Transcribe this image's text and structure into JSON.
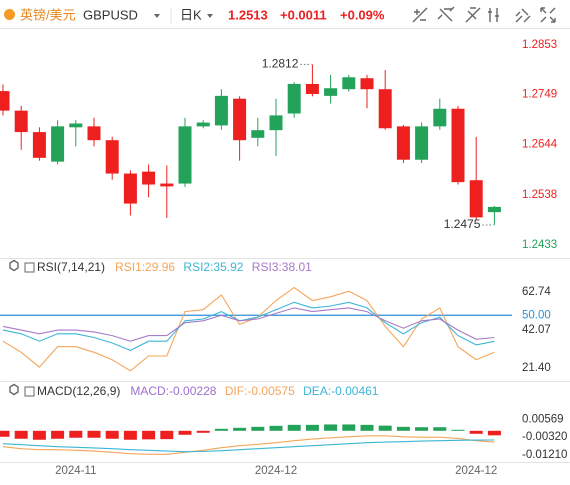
{
  "header": {
    "pair": "英镑/美元",
    "symbol": "GBPUSD",
    "period": "日K",
    "price": "1.2513",
    "change": "+0.0011",
    "change_pct": "+0.09%"
  },
  "chart_data": [
    {
      "type": "candlestick",
      "categories": [
        null,
        null,
        null,
        null,
        "2024-11",
        null,
        null,
        null,
        null,
        null,
        null,
        null,
        null,
        null,
        null,
        "2024-12",
        null,
        null,
        null,
        null,
        null,
        null,
        null,
        null,
        null,
        null,
        "2024-12",
        null
      ],
      "open": [
        1.2756,
        1.2715,
        1.267,
        1.2608,
        1.268,
        1.2682,
        1.2653,
        1.2583,
        1.2587,
        1.2562,
        1.2562,
        1.2682,
        1.2684,
        1.274,
        1.2658,
        1.2674,
        1.2709,
        1.2771,
        1.2746,
        1.276,
        1.2783,
        1.276,
        1.2682,
        1.2612,
        1.2682,
        1.2719,
        1.2569,
        1.2502
      ],
      "high": [
        1.277,
        1.2725,
        1.268,
        1.2695,
        1.2695,
        1.27,
        1.266,
        1.259,
        1.2602,
        1.26,
        1.27,
        1.2695,
        1.276,
        1.2745,
        1.27,
        1.274,
        1.2775,
        1.2812,
        1.279,
        1.279,
        1.279,
        1.28,
        1.2685,
        1.269,
        1.274,
        1.2725,
        1.266,
        1.2515
      ],
      "low": [
        1.2705,
        1.2633,
        1.261,
        1.2602,
        1.264,
        1.264,
        1.257,
        1.2495,
        1.2533,
        1.249,
        1.2555,
        1.2678,
        1.2675,
        1.261,
        1.264,
        1.262,
        1.27,
        1.2745,
        1.273,
        1.2755,
        1.272,
        1.2675,
        1.2605,
        1.2605,
        1.2675,
        1.256,
        1.2485,
        1.2475
      ],
      "close": [
        1.2715,
        1.267,
        1.2616,
        1.2682,
        1.2688,
        1.2653,
        1.2583,
        1.252,
        1.256,
        1.2556,
        1.2682,
        1.269,
        1.2746,
        1.2653,
        1.2674,
        1.2705,
        1.2771,
        1.275,
        1.2762,
        1.2785,
        1.276,
        1.2678,
        1.2612,
        1.2682,
        1.2719,
        1.2565,
        1.2491,
        1.2513
      ],
      "up_color": "#23a25a",
      "down_color": "#ee1f1f",
      "high_label": 1.2812,
      "low_label": 1.2475,
      "ylim": [
        1.241,
        1.288
      ],
      "yticks": [
        1.2853,
        1.2749,
        1.2644,
        1.2538,
        1.2433
      ]
    },
    {
      "type": "line",
      "label": "RSI(7,14,21)",
      "series": [
        {
          "name": "RSI1:29.96",
          "color": "#f5a55a",
          "values": [
            36,
            30,
            22,
            33,
            33,
            30,
            26,
            20,
            28,
            28,
            52,
            53,
            61,
            45,
            49,
            58,
            65,
            58,
            60,
            63,
            58,
            44,
            33,
            48,
            54,
            33,
            26,
            29.96
          ]
        },
        {
          "name": "RSI2:35.92",
          "color": "#3cb6d6",
          "values": [
            42,
            40,
            36,
            40,
            40,
            38,
            35,
            31,
            36,
            36,
            47,
            48,
            52,
            47,
            49,
            53,
            57,
            54,
            55,
            57,
            54,
            46,
            40,
            46,
            49,
            39,
            34,
            35.92
          ]
        },
        {
          "name": "RSI3:38.01",
          "color": "#a77bc9",
          "values": [
            44,
            42,
            40,
            42,
            42,
            41,
            39,
            36,
            39,
            39,
            46,
            47,
            50,
            47,
            48,
            51,
            54,
            52,
            53,
            54,
            52,
            47,
            43,
            47,
            48,
            42,
            37,
            38.01
          ]
        }
      ],
      "ylim": [
        15,
        68
      ],
      "yticks": [
        62.74,
        {
          "value": 50,
          "label": "50.00",
          "color": "#2f8fd8"
        },
        42.07,
        {
          "value": 21.4,
          "label": "21.40"
        }
      ]
    },
    {
      "type": "bar",
      "label": "MACD(12,26,9)",
      "name": "MACD:-0.00228",
      "name_color": "#9d6fcf",
      "up_color": "#23a25a",
      "down_color": "#ee1f1f",
      "values": [
        -0.003,
        -0.004,
        -0.0045,
        -0.004,
        -0.0035,
        -0.0035,
        -0.004,
        -0.0045,
        -0.0043,
        -0.0042,
        -0.002,
        -0.001,
        0.001,
        0.0015,
        0.002,
        0.0025,
        0.003,
        0.003,
        0.0032,
        0.0032,
        0.003,
        0.0026,
        0.002,
        0.0018,
        0.0018,
        0.0005,
        -0.0015,
        -0.00228
      ],
      "series": [
        {
          "name": "DIF:-0.00575",
          "color": "#f5a55a",
          "values": [
            -0.008,
            -0.009,
            -0.0095,
            -0.0095,
            -0.0098,
            -0.0102,
            -0.0108,
            -0.0115,
            -0.0118,
            -0.0118,
            -0.0108,
            -0.0098,
            -0.0085,
            -0.0075,
            -0.0068,
            -0.006,
            -0.005,
            -0.0042,
            -0.0035,
            -0.003,
            -0.0025,
            -0.0025,
            -0.003,
            -0.0032,
            -0.0032,
            -0.0038,
            -0.005,
            -0.00575
          ]
        },
        {
          "name": "DEA:-0.00461",
          "color": "#3cb6d6",
          "values": [
            -0.0065,
            -0.007,
            -0.0075,
            -0.008,
            -0.0083,
            -0.0086,
            -0.009,
            -0.0095,
            -0.0098,
            -0.0102,
            -0.0105,
            -0.0104,
            -0.01,
            -0.0095,
            -0.009,
            -0.0085,
            -0.008,
            -0.0075,
            -0.007,
            -0.0065,
            -0.006,
            -0.0057,
            -0.0055,
            -0.0052,
            -0.005,
            -0.0048,
            -0.0047,
            -0.00461
          ]
        }
      ],
      "ylim": [
        -0.0157,
        0.0155
      ],
      "yticks": [
        0.00569,
        {
          "value": -0.0032,
          "label": "-0.00320"
        },
        {
          "value": -0.0121,
          "label": "-0.01210"
        }
      ]
    }
  ]
}
